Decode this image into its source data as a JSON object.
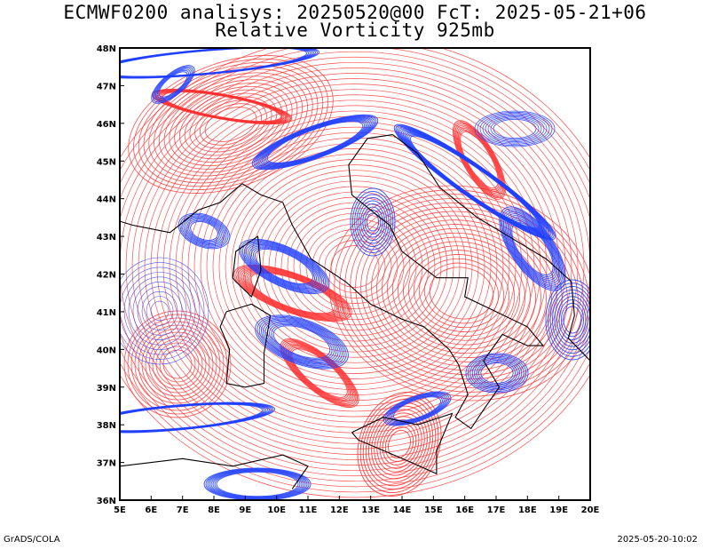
{
  "header": {
    "title_line1": "ECMWF0200 analisys: 20250520@00 FcT: 2025-05-21+06",
    "title_line2": "Relative Vorticity 925mb"
  },
  "map": {
    "region": "Italy and central Mediterranean",
    "lon_range": [
      5,
      20
    ],
    "lat_range": [
      36,
      48
    ],
    "x_ticks": [
      "5E",
      "6E",
      "7E",
      "8E",
      "9E",
      "10E",
      "11E",
      "12E",
      "13E",
      "14E",
      "15E",
      "16E",
      "17E",
      "18E",
      "19E",
      "20E"
    ],
    "y_ticks": [
      "36N",
      "37N",
      "38N",
      "39N",
      "40N",
      "41N",
      "42N",
      "43N",
      "44N",
      "45N",
      "46N",
      "47N",
      "48N"
    ],
    "field": "relative vorticity",
    "level": "925mb",
    "positive_color": "#ff3030",
    "negative_color": "#2040ff",
    "coastline_color": "#000000"
  },
  "footer": {
    "credit": "GrADS/COLA",
    "timestamp": "2025-05-20-10:02"
  }
}
